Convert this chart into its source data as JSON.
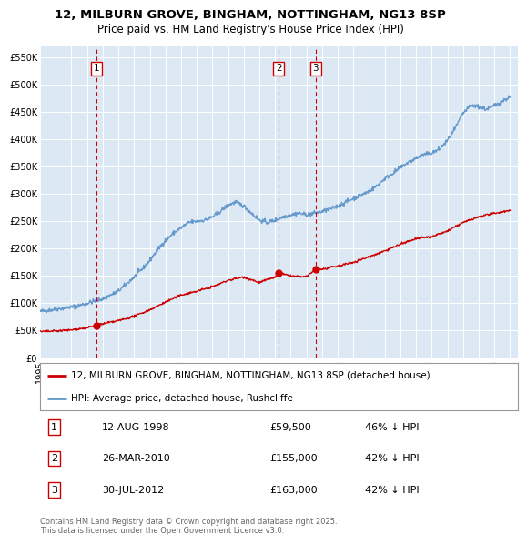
{
  "title": "12, MILBURN GROVE, BINGHAM, NOTTINGHAM, NG13 8SP",
  "subtitle": "Price paid vs. HM Land Registry's House Price Index (HPI)",
  "bg_color": "#dce9f5",
  "yticks": [
    0,
    50000,
    100000,
    150000,
    200000,
    250000,
    300000,
    350000,
    400000,
    450000,
    500000,
    550000
  ],
  "ytick_labels": [
    "£0",
    "£50K",
    "£100K",
    "£150K",
    "£200K",
    "£250K",
    "£300K",
    "£350K",
    "£400K",
    "£450K",
    "£500K",
    "£550K"
  ],
  "ylim": [
    0,
    570000
  ],
  "xlim_start": 1995.0,
  "xlim_end": 2025.5,
  "legend_line1": "12, MILBURN GROVE, BINGHAM, NOTTINGHAM, NG13 8SP (detached house)",
  "legend_line2": "HPI: Average price, detached house, Rushcliffe",
  "sale1_date": 1998.62,
  "sale1_price": 59500,
  "sale1_label": "1",
  "sale2_date": 2010.23,
  "sale2_price": 155000,
  "sale2_label": "2",
  "sale3_date": 2012.58,
  "sale3_price": 163000,
  "sale3_label": "3",
  "hpi_years": [
    1995.0,
    1995.5,
    1996.0,
    1996.5,
    1997.0,
    1997.5,
    1998.0,
    1998.5,
    1999.0,
    1999.5,
    2000.0,
    2000.5,
    2001.0,
    2001.5,
    2002.0,
    2002.5,
    2003.0,
    2003.5,
    2004.0,
    2004.5,
    2005.0,
    2005.5,
    2006.0,
    2006.5,
    2007.0,
    2007.5,
    2008.0,
    2008.5,
    2009.0,
    2009.5,
    2010.0,
    2010.5,
    2011.0,
    2011.5,
    2012.0,
    2012.5,
    2013.0,
    2013.5,
    2014.0,
    2014.5,
    2015.0,
    2015.5,
    2016.0,
    2016.5,
    2017.0,
    2017.5,
    2018.0,
    2018.5,
    2019.0,
    2019.5,
    2020.0,
    2020.5,
    2021.0,
    2021.5,
    2022.0,
    2022.5,
    2023.0,
    2023.5,
    2024.0,
    2024.5,
    2025.0
  ],
  "hpi_values": [
    85000,
    87000,
    89000,
    91000,
    93000,
    96000,
    100000,
    104000,
    108000,
    115000,
    122000,
    135000,
    148000,
    162000,
    178000,
    198000,
    215000,
    228000,
    238000,
    248000,
    250000,
    252000,
    258000,
    268000,
    280000,
    285000,
    278000,
    265000,
    252000,
    248000,
    252000,
    258000,
    262000,
    265000,
    262000,
    265000,
    268000,
    272000,
    278000,
    285000,
    292000,
    298000,
    305000,
    315000,
    328000,
    338000,
    348000,
    358000,
    365000,
    372000,
    375000,
    382000,
    398000,
    420000,
    448000,
    462000,
    460000,
    455000,
    462000,
    470000,
    478000
  ],
  "prop_years": [
    1995.0,
    1996.0,
    1997.0,
    1998.0,
    1998.62,
    1999.0,
    2000.0,
    2001.0,
    2002.0,
    2003.0,
    2004.0,
    2005.0,
    2006.0,
    2007.0,
    2008.0,
    2009.0,
    2010.0,
    2010.23,
    2011.0,
    2012.0,
    2012.58,
    2013.0,
    2014.0,
    2015.0,
    2016.0,
    2017.0,
    2018.0,
    2019.0,
    2020.0,
    2021.0,
    2022.0,
    2023.0,
    2024.0,
    2025.0
  ],
  "prop_values": [
    48000,
    49000,
    51000,
    55000,
    59500,
    62000,
    68000,
    76000,
    88000,
    102000,
    115000,
    122000,
    130000,
    142000,
    148000,
    138000,
    148000,
    155000,
    150000,
    148000,
    163000,
    162000,
    168000,
    175000,
    185000,
    196000,
    208000,
    218000,
    222000,
    232000,
    248000,
    258000,
    265000,
    270000
  ],
  "table": [
    {
      "num": "1",
      "date": "12-AUG-1998",
      "price": "£59,500",
      "pct": "46% ↓ HPI"
    },
    {
      "num": "2",
      "date": "26-MAR-2010",
      "price": "£155,000",
      "pct": "42% ↓ HPI"
    },
    {
      "num": "3",
      "date": "30-JUL-2012",
      "price": "£163,000",
      "pct": "42% ↓ HPI"
    }
  ],
  "footer": "Contains HM Land Registry data © Crown copyright and database right 2025.\nThis data is licensed under the Open Government Licence v3.0.",
  "red_color": "#cc0000",
  "blue_color": "#6699cc",
  "title_fontsize": 9.5,
  "subtitle_fontsize": 8.5,
  "tick_fontsize": 7,
  "legend_fontsize": 7.5,
  "table_fontsize": 8,
  "footer_fontsize": 6
}
